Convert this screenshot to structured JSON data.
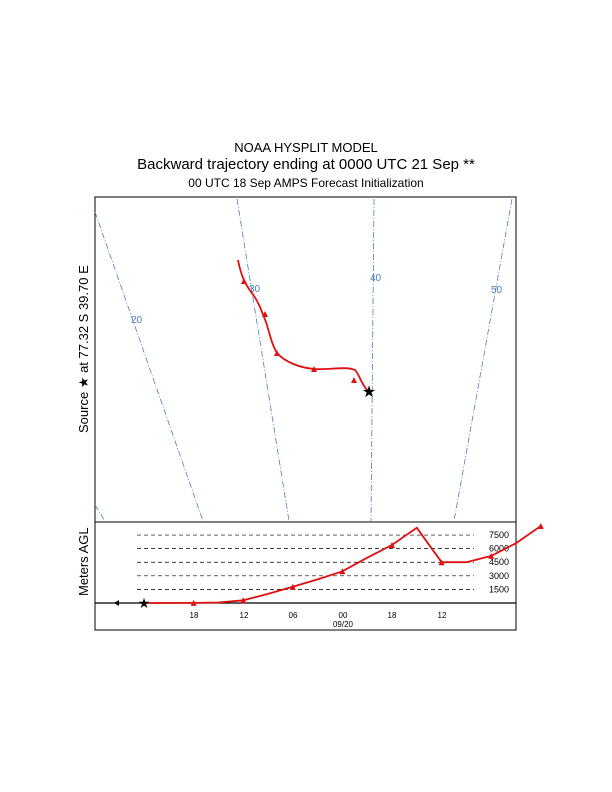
{
  "header": {
    "title": "NOAA HYSPLIT MODEL",
    "subtitle": "Backward trajectory ending at 0000 UTC 21 Sep **",
    "init_line": "00 UTC 18 Sep    AMPS  Forecast Initialization"
  },
  "map": {
    "source_label": "Source  ★  at   77.32 S   39.70 E",
    "meridian_labels": [
      "20",
      "30",
      "40",
      "50"
    ]
  },
  "chart_data": {
    "type": "line",
    "title": "Backward trajectory ending at 0000 UTC 21 Sep **",
    "ylabel": "Meters AGL",
    "yticks": [
      1500,
      3000,
      4500,
      6000,
      7500
    ],
    "ylim": [
      0,
      8500
    ],
    "xticks": [
      "18",
      "12",
      "06",
      "00",
      "18",
      "12"
    ],
    "date_label": "09/20",
    "grid": true,
    "series": [
      {
        "values_note_hours_before_end": [
          0,
          6,
          12,
          18,
          24,
          30,
          36,
          42,
          48,
          54,
          60,
          66,
          72
        ],
        "values": [
          0,
          0,
          10,
          60,
          300,
          1000,
          1800,
          2600,
          3500,
          5000,
          6400,
          8300,
          4500
        ],
        "extra_values": [
          4500,
          5200,
          6600,
          8600
        ]
      }
    ],
    "colors": {
      "trajectory": "#e01010",
      "meridian": "#4a7fb8"
    }
  }
}
